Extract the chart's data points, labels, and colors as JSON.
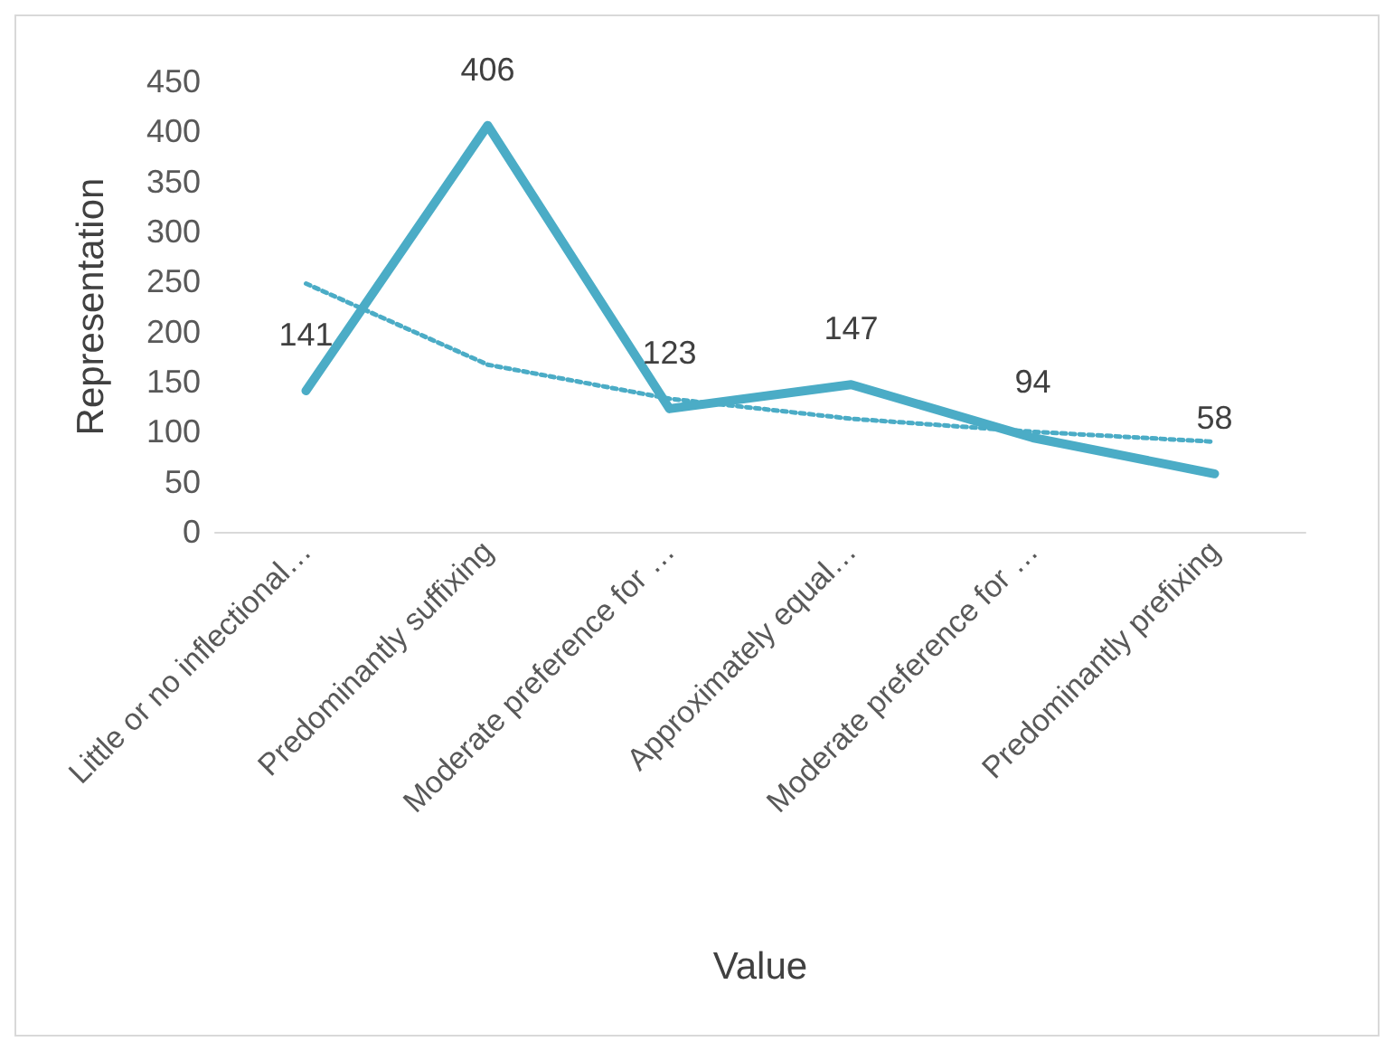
{
  "chart_data": {
    "type": "line",
    "xlabel": "Value",
    "ylabel": "Representation",
    "categories": [
      "Little or no inflectional…",
      "Predominantly suffixing",
      "Moderate preference for …",
      "Approximately equal…",
      "Moderate preference for …",
      "Predominantly prefixing"
    ],
    "series": [
      {
        "color": "#4bacc6",
        "values": [
          141,
          406,
          123,
          147,
          94,
          58
        ],
        "value_labels": [
          "141",
          "406",
          "123",
          "147",
          "94",
          "58"
        ],
        "line_style": "solid"
      },
      {
        "color": "#4bacc6",
        "values": [
          248,
          167,
          133,
          113,
          100,
          90
        ],
        "line_style": "dotted"
      }
    ],
    "ylim": [
      0,
      450
    ],
    "yticks": [
      0,
      50,
      100,
      150,
      200,
      250,
      300,
      350,
      400,
      450
    ],
    "grid": false,
    "marker": "none"
  }
}
